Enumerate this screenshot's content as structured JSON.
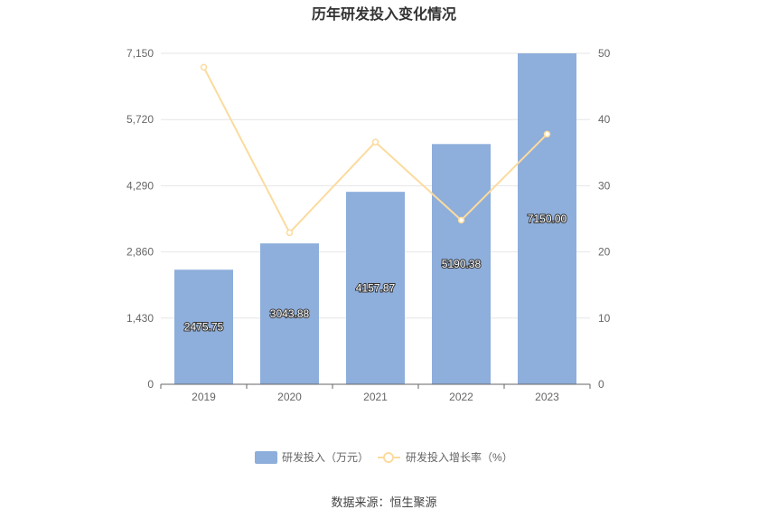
{
  "chart_data": {
    "type": "bar",
    "title": "历年研发投入变化情况",
    "categories": [
      "2019",
      "2020",
      "2021",
      "2022",
      "2023"
    ],
    "series": [
      {
        "name": "研发投入（万元）",
        "type": "bar",
        "axis": "left",
        "values": [
          2475.75,
          3043.88,
          4157.87,
          5190.38,
          7150.0
        ],
        "labels": [
          "2475.75",
          "3043.88",
          "4157.87",
          "5190.38",
          "7150.00"
        ],
        "color": "#8eaedb"
      },
      {
        "name": "研发投入增长率（%）",
        "type": "line",
        "axis": "right",
        "values": [
          47.9,
          22.9,
          36.6,
          24.8,
          37.8
        ],
        "color": "#fbdb9e"
      }
    ],
    "y_left": {
      "min": 0,
      "max": 7150,
      "ticks": [
        0,
        1430,
        2860,
        4290,
        5720,
        7150
      ],
      "tick_labels": [
        "0",
        "1,430",
        "2,860",
        "4,290",
        "5,720",
        "7,150"
      ]
    },
    "y_right": {
      "min": 0,
      "max": 50,
      "ticks": [
        0,
        10,
        20,
        30,
        40,
        50
      ],
      "tick_labels": [
        "0",
        "10",
        "20",
        "30",
        "40",
        "50"
      ]
    },
    "grid": true,
    "legend_position": "bottom"
  },
  "footer": {
    "source": "数据来源：恒生聚源"
  }
}
